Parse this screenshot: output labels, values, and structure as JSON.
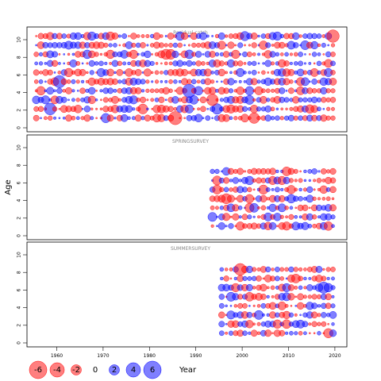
{
  "chart_data": {
    "type": "scatter",
    "subtype": "bubble-residuals",
    "ylabel": "Age",
    "xlabel": "Year",
    "xlim": [
      1954,
      2023
    ],
    "x_ticks": [
      1960,
      1970,
      1980,
      1990,
      2000,
      2010,
      2020
    ],
    "ylim": [
      -0.5,
      11
    ],
    "y_ticks": [
      0,
      2,
      4,
      6,
      8,
      10
    ],
    "colors": {
      "positive": "#0000ff",
      "negative": "#ff0000"
    },
    "legend": {
      "placement": "bottom",
      "values": [
        -6,
        -4,
        -2,
        0,
        2,
        4,
        6
      ],
      "labels": [
        "-6",
        "-4",
        "-2",
        "0",
        "2",
        "4",
        "6"
      ]
    },
    "panels": [
      {
        "title": "Residual catch",
        "year_range": [
          1956,
          2020
        ],
        "ages": [
          1,
          10
        ]
      },
      {
        "title": "SPRINGSURVEY",
        "year_range": [
          1994,
          2020
        ],
        "ages": [
          1,
          7
        ]
      },
      {
        "title": "SUMMERSURVEY",
        "year_range": [
          1996,
          2020
        ],
        "ages": [
          1,
          8
        ]
      }
    ]
  }
}
